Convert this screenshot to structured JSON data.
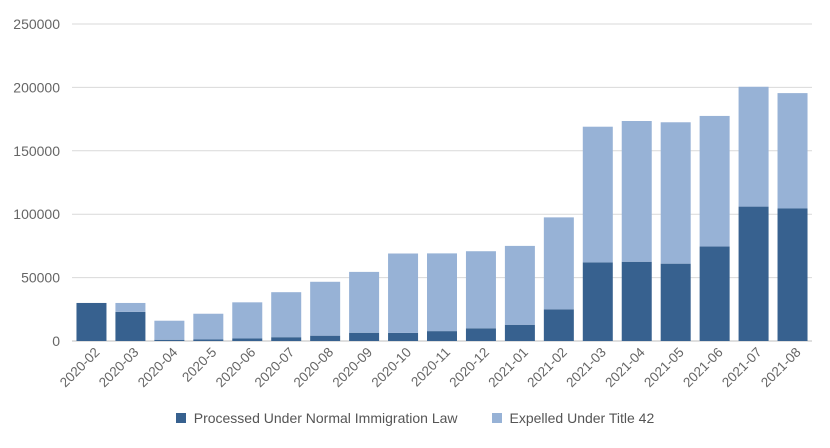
{
  "chart_data": {
    "type": "bar",
    "stacked": true,
    "categories": [
      "2020-02",
      "2020-03",
      "2020-04",
      "2020-5",
      "2020-06",
      "2020-07",
      "2020-08",
      "2020-09",
      "2020-10",
      "2020-11",
      "2020-12",
      "2021-01",
      "2021-02",
      "2021-03",
      "2021-04",
      "2021-05",
      "2021-06",
      "2021-07",
      "2021-08"
    ],
    "series": [
      {
        "name": "Processed Under Normal Immigration Law",
        "color": "#37618f",
        "values": [
          30000,
          23000,
          1000,
          1200,
          2000,
          3000,
          4200,
          6500,
          6400,
          7800,
          10000,
          12800,
          25000,
          62000,
          62500,
          61000,
          74500,
          106000,
          104500
        ]
      },
      {
        "name": "Expelled Under Title 42",
        "color": "#97b2d6",
        "values": [
          0,
          7000,
          15000,
          20300,
          28500,
          35500,
          42500,
          48000,
          62600,
          61300,
          60800,
          62200,
          72500,
          107000,
          111000,
          111500,
          103000,
          94500,
          91000
        ]
      }
    ],
    "ylim": [
      0,
      250000
    ],
    "yticks": [
      "0",
      "50000",
      "100000",
      "150000",
      "200000",
      "250000"
    ],
    "ytick_values": [
      0,
      50000,
      100000,
      150000,
      200000,
      250000
    ],
    "grid": true,
    "legend_position": "bottom"
  }
}
